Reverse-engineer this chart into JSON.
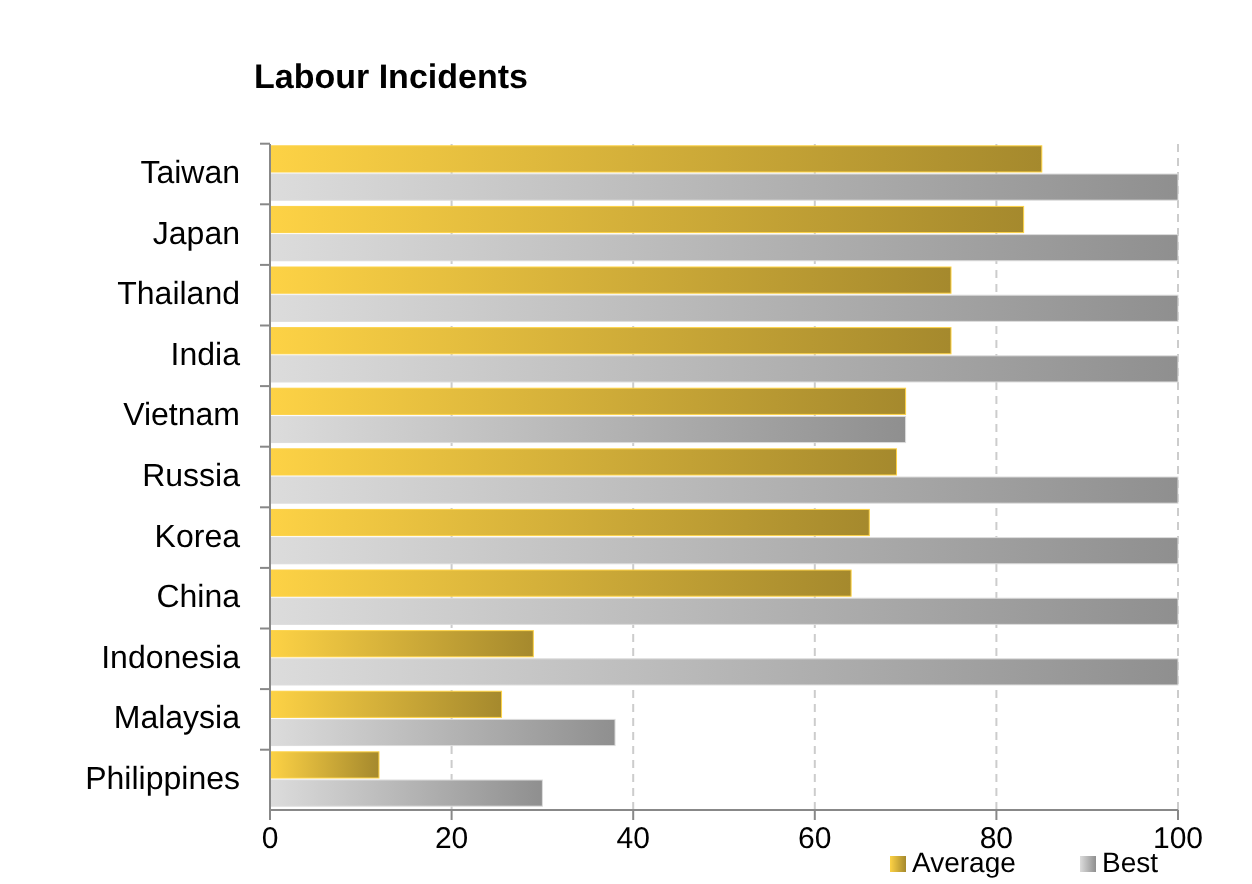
{
  "chart_data": {
    "type": "bar",
    "orientation": "horizontal",
    "title": "Labour Incidents",
    "categories": [
      "Taiwan",
      "Japan",
      "Thailand",
      "India",
      "Vietnam",
      "Russia",
      "Korea",
      "China",
      "Indonesia",
      "Malaysia",
      "Philippines"
    ],
    "series": [
      {
        "name": "Average",
        "color": "#fdd245",
        "values": [
          85,
          83,
          75,
          75,
          70,
          69,
          66,
          64,
          29,
          25.5,
          12
        ]
      },
      {
        "name": "Best",
        "color": "#dcdcdc",
        "values": [
          100,
          100,
          100,
          100,
          70,
          100,
          100,
          100,
          100,
          38,
          30
        ]
      }
    ],
    "xlim": [
      0,
      100
    ],
    "xticks": [
      0,
      20,
      40,
      60,
      80,
      100
    ],
    "grid": "x",
    "legend": "bottom"
  }
}
